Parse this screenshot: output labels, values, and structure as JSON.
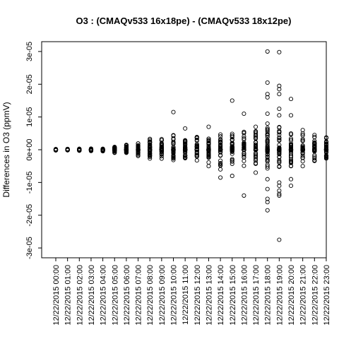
{
  "chart_data": {
    "type": "scatter",
    "title": "O3 : (CMAQv533 16x18pe) - (CMAQv533 18x12pe)",
    "xlabel": "",
    "ylabel": "Differences in O3 (ppmV)",
    "ylim": [
      -3.3e-05,
      3.3e-05
    ],
    "y_ticks": [
      -3e-05,
      -2e-05,
      -1e-05,
      0,
      1e-05,
      2e-05,
      3e-05
    ],
    "y_tick_labels": [
      "-3e-05",
      "-2e-05",
      "-1e-05",
      "0e+00",
      "1e-05",
      "2e-05",
      "3e-05"
    ],
    "grid": false,
    "legend": "none",
    "categories": [
      "12/22/2015 00:00",
      "12/22/2015 01:00",
      "12/22/2015 02:00",
      "12/22/2015 03:00",
      "12/22/2015 04:00",
      "12/22/2015 05:00",
      "12/22/2015 06:00",
      "12/22/2015 07:00",
      "12/22/2015 08:00",
      "12/22/2015 09:00",
      "12/22/2015 10:00",
      "12/22/2015 11:00",
      "12/22/2015 12:00",
      "12/22/2015 13:00",
      "12/22/2015 14:00",
      "12/22/2015 15:00",
      "12/22/2015 16:00",
      "12/22/2015 17:00",
      "12/22/2015 18:00",
      "12/22/2015 19:00",
      "12/22/2015 20:00",
      "12/22/2015 21:00",
      "12/22/2015 22:00",
      "12/22/2015 23:00"
    ],
    "spread_max": [
      2e-07,
      3e-07,
      3e-07,
      4e-07,
      5e-07,
      1e-06,
      1.5e-06,
      2e-06,
      3.5e-06,
      3.5e-06,
      4.5e-06,
      3e-06,
      4e-06,
      3.5e-06,
      5e-06,
      5e-06,
      5.5e-06,
      6e-06,
      8e-06,
      8e-06,
      7e-06,
      5e-06,
      4e-06,
      4e-06
    ],
    "spread_min": [
      -2e-07,
      -3e-07,
      -3e-07,
      -4e-07,
      -5e-07,
      -1e-06,
      -1e-06,
      -2e-06,
      -3e-06,
      -3e-06,
      -3.5e-06,
      -3e-06,
      -3.5e-06,
      -4e-06,
      -5e-06,
      -4.5e-06,
      -5e-06,
      -5e-06,
      -7e-06,
      -6e-06,
      -5.5e-06,
      -4e-06,
      -3.5e-06,
      -3e-06
    ],
    "outliers": [
      [
        0,
        0
      ],
      [
        10,
        1.15e-05
      ],
      [
        11,
        6.5e-06
      ],
      [
        13,
        7e-06
      ],
      [
        13,
        -5e-06
      ],
      [
        14,
        -8.5e-06
      ],
      [
        14,
        -6e-06
      ],
      [
        15,
        1.5e-05
      ],
      [
        15,
        -8e-06
      ],
      [
        16,
        1.1e-05
      ],
      [
        16,
        -1.4e-05
      ],
      [
        17,
        7e-06
      ],
      [
        17,
        -7e-06
      ],
      [
        18,
        3e-05
      ],
      [
        18,
        2.05e-05
      ],
      [
        18,
        1.7e-05
      ],
      [
        18,
        1.6e-05
      ],
      [
        18,
        1.1e-05
      ],
      [
        18,
        -1.5e-05
      ],
      [
        18,
        -1.6e-05
      ],
      [
        18,
        -1.85e-05
      ],
      [
        18,
        -1.2e-05
      ],
      [
        18,
        -9e-06
      ],
      [
        19,
        2.98e-05
      ],
      [
        19,
        1.95e-05
      ],
      [
        19,
        1.85e-05
      ],
      [
        19,
        1.7e-05
      ],
      [
        19,
        1.25e-05
      ],
      [
        19,
        1.05e-05
      ],
      [
        19,
        -1e-05
      ],
      [
        19,
        -1.1e-05
      ],
      [
        19,
        -1.25e-05
      ],
      [
        19,
        -1.4e-05
      ],
      [
        19,
        -2.75e-05
      ],
      [
        19,
        -1.35e-05
      ],
      [
        20,
        1.55e-05
      ],
      [
        20,
        1.05e-05
      ],
      [
        20,
        -9e-06
      ],
      [
        20,
        -1.1e-05
      ],
      [
        21,
        6e-06
      ],
      [
        21,
        -5e-06
      ],
      [
        22,
        4.5e-06
      ]
    ]
  }
}
